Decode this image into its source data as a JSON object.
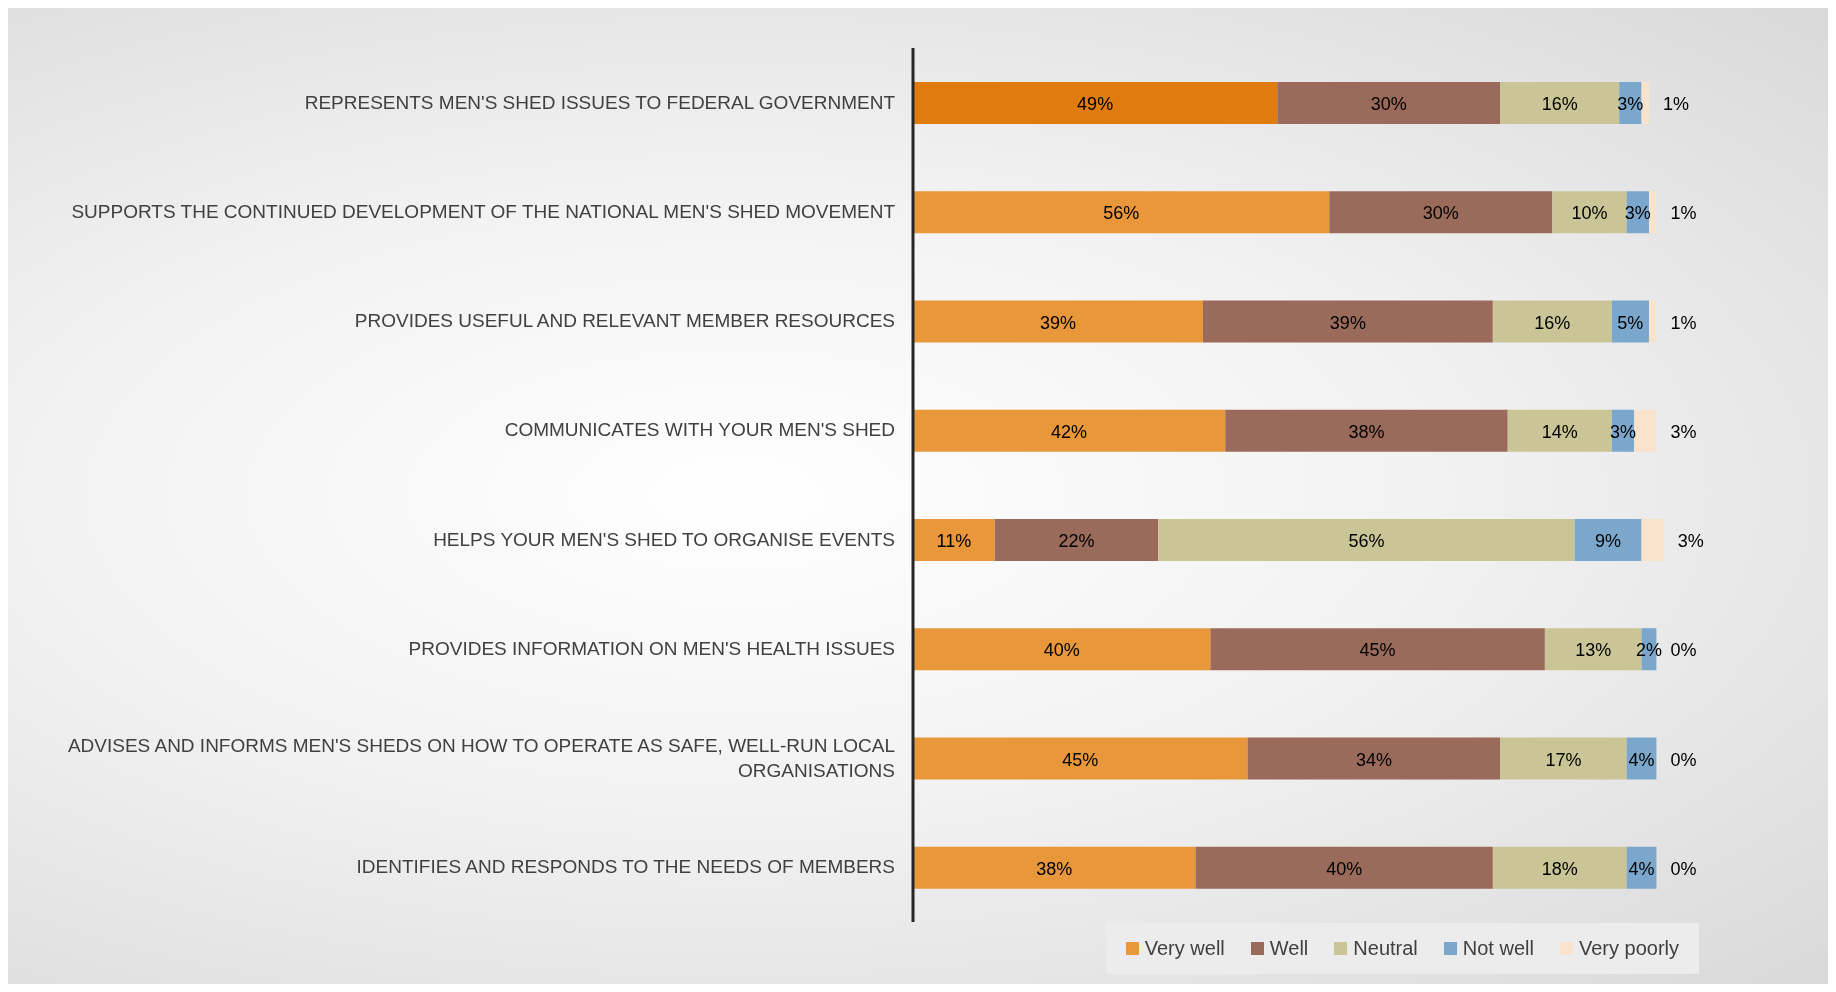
{
  "chart_data": {
    "type": "bar",
    "orientation": "horizontal",
    "stacked": true,
    "categories": [
      "REPRESENTS MEN'S SHED ISSUES TO FEDERAL GOVERNMENT",
      "SUPPORTS THE CONTINUED DEVELOPMENT OF THE NATIONAL MEN'S SHED MOVEMENT",
      "PROVIDES USEFUL AND RELEVANT MEMBER RESOURCES",
      "COMMUNICATES WITH YOUR MEN'S SHED",
      "HELPS YOUR MEN'S SHED TO ORGANISE EVENTS",
      "PROVIDES INFORMATION ON MEN'S HEALTH ISSUES",
      "ADVISES AND INFORMS MEN'S SHEDS ON HOW TO OPERATE AS SAFE, WELL-RUN LOCAL ORGANISATIONS",
      "IDENTIFIES AND RESPONDS TO THE NEEDS OF MEMBERS"
    ],
    "series": [
      {
        "name": "Very well",
        "color": "#e8973a",
        "colors": [
          "#e07b10",
          "#e8973a",
          "#e8973a",
          "#e8973a",
          "#e8973a",
          "#e8973a",
          "#e8973a",
          "#e8973a"
        ],
        "values": [
          49,
          56,
          39,
          42,
          11,
          40,
          45,
          38
        ],
        "value_labels": [
          "49%",
          "56%",
          "39%",
          "42%",
          "11%",
          "40%",
          "45%",
          "38%"
        ]
      },
      {
        "name": "Well",
        "color": "#9a6b5a",
        "values": [
          30,
          30,
          39,
          38,
          22,
          45,
          34,
          40
        ],
        "value_labels": [
          "30%",
          "30%",
          "39%",
          "38%",
          "22%",
          "45%",
          "34%",
          "40%"
        ]
      },
      {
        "name": "Neutral",
        "color": "#c9c596",
        "values": [
          16,
          10,
          16,
          14,
          56,
          13,
          17,
          18
        ],
        "value_labels": [
          "16%",
          "10%",
          "16%",
          "14%",
          "56%",
          "13%",
          "17%",
          "18%"
        ]
      },
      {
        "name": "Not well",
        "color": "#7ba7cd",
        "values": [
          3,
          3,
          5,
          3,
          9,
          2,
          4,
          4
        ],
        "value_labels": [
          "3%",
          "3%",
          "5%",
          "3%",
          "9%",
          "2%",
          "4%",
          "4%"
        ]
      },
      {
        "name": "Very poorly",
        "color": "#f9e3cc",
        "values": [
          1,
          1,
          1,
          3,
          3,
          0,
          0,
          0
        ],
        "value_labels": [
          "1%",
          "1%",
          "1%",
          "3%",
          "3%",
          "0%",
          "0%",
          "0%"
        ]
      }
    ],
    "tick_labels": "y",
    "legend": "bottom right"
  }
}
